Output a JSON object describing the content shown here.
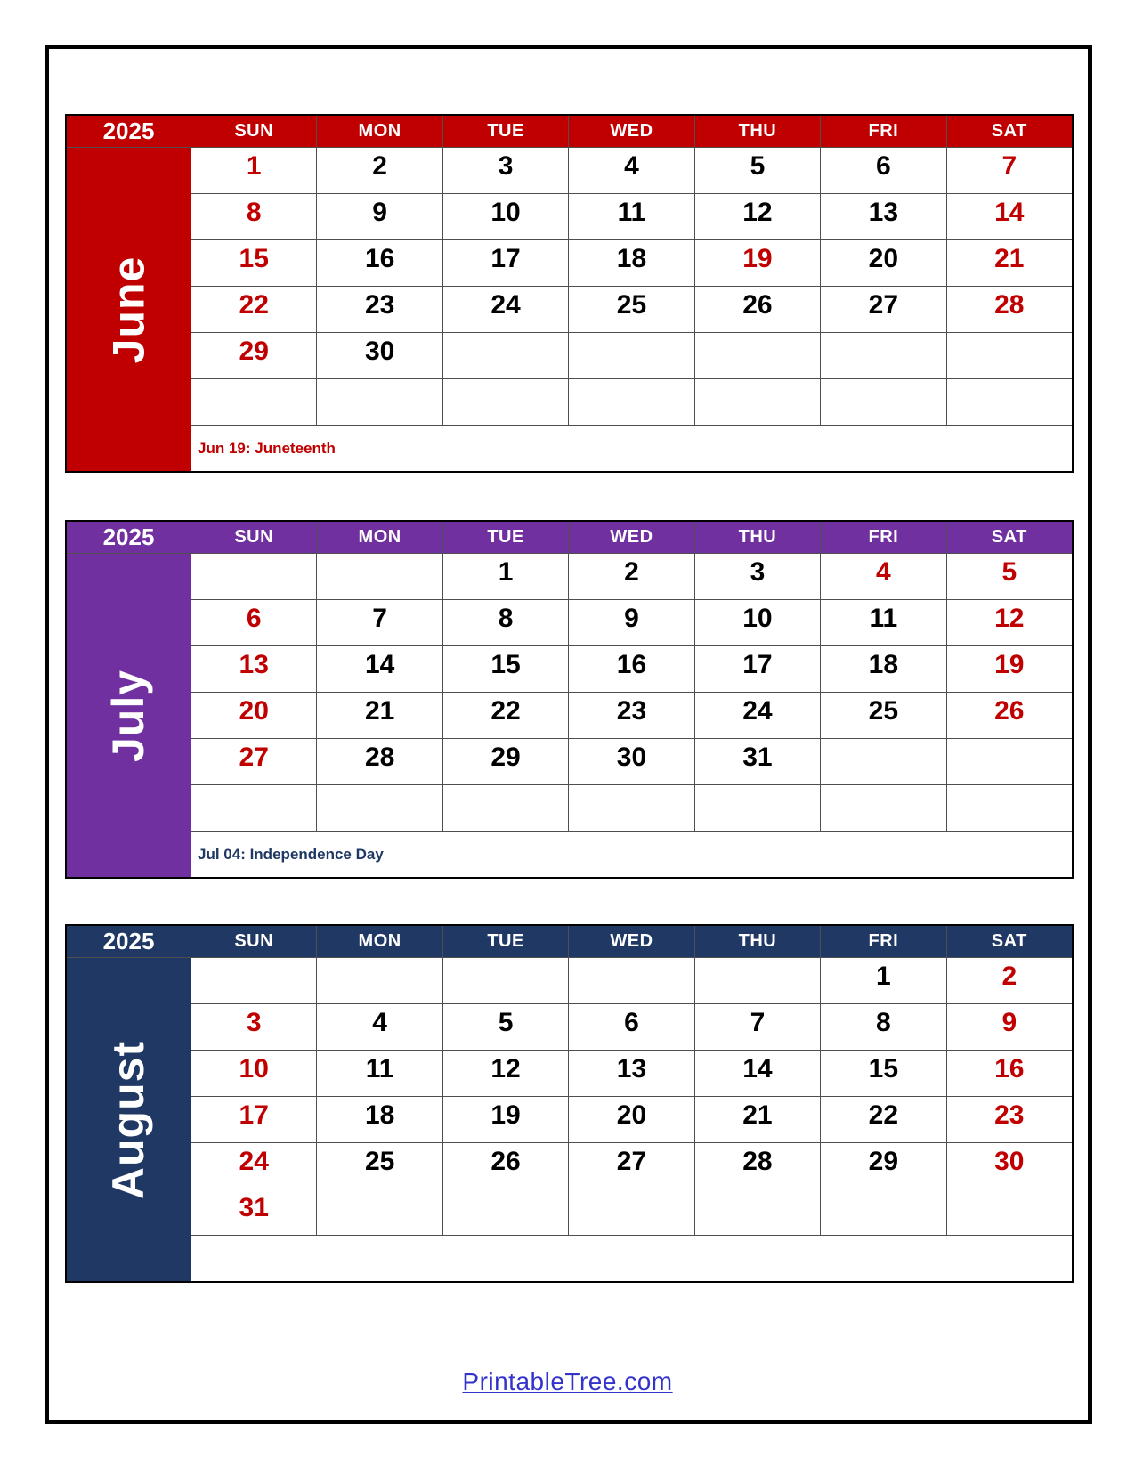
{
  "colors": {
    "june_band": "#C00000",
    "july_band": "#7030A0",
    "august_band": "#1F3864",
    "date_highlight": "#C00000",
    "date_normal": "#000000",
    "link_blue": "#3333CC"
  },
  "footer": {
    "link_text": "PrintableTree.com"
  },
  "months": [
    {
      "name": "June",
      "year": "2025",
      "color": "#C00000",
      "day_headers": [
        "SUN",
        "MON",
        "TUE",
        "WED",
        "THU",
        "FRI",
        "SAT"
      ],
      "note": "Jun 19: Juneteenth",
      "note_color": "#C00000",
      "weeks": [
        [
          {
            "d": "1",
            "red": true
          },
          {
            "d": "2"
          },
          {
            "d": "3"
          },
          {
            "d": "4"
          },
          {
            "d": "5"
          },
          {
            "d": "6"
          },
          {
            "d": "7",
            "red": true
          }
        ],
        [
          {
            "d": "8",
            "red": true
          },
          {
            "d": "9"
          },
          {
            "d": "10"
          },
          {
            "d": "11"
          },
          {
            "d": "12"
          },
          {
            "d": "13"
          },
          {
            "d": "14",
            "red": true
          }
        ],
        [
          {
            "d": "15",
            "red": true
          },
          {
            "d": "16"
          },
          {
            "d": "17"
          },
          {
            "d": "18"
          },
          {
            "d": "19",
            "red": true
          },
          {
            "d": "20"
          },
          {
            "d": "21",
            "red": true
          }
        ],
        [
          {
            "d": "22",
            "red": true
          },
          {
            "d": "23"
          },
          {
            "d": "24"
          },
          {
            "d": "25"
          },
          {
            "d": "26"
          },
          {
            "d": "27"
          },
          {
            "d": "28",
            "red": true
          }
        ],
        [
          {
            "d": "29",
            "red": true
          },
          {
            "d": "30"
          },
          {
            "d": ""
          },
          {
            "d": ""
          },
          {
            "d": ""
          },
          {
            "d": ""
          },
          {
            "d": ""
          }
        ],
        [
          {
            "d": ""
          },
          {
            "d": ""
          },
          {
            "d": ""
          },
          {
            "d": ""
          },
          {
            "d": ""
          },
          {
            "d": ""
          },
          {
            "d": ""
          }
        ]
      ]
    },
    {
      "name": "July",
      "year": "2025",
      "color": "#7030A0",
      "day_headers": [
        "SUN",
        "MON",
        "TUE",
        "WED",
        "THU",
        "FRI",
        "SAT"
      ],
      "note": "Jul 04: Independence Day",
      "note_color": "#1F3864",
      "weeks": [
        [
          {
            "d": ""
          },
          {
            "d": ""
          },
          {
            "d": "1"
          },
          {
            "d": "2"
          },
          {
            "d": "3"
          },
          {
            "d": "4",
            "red": true
          },
          {
            "d": "5",
            "red": true
          }
        ],
        [
          {
            "d": "6",
            "red": true
          },
          {
            "d": "7"
          },
          {
            "d": "8"
          },
          {
            "d": "9"
          },
          {
            "d": "10"
          },
          {
            "d": "11"
          },
          {
            "d": "12",
            "red": true
          }
        ],
        [
          {
            "d": "13",
            "red": true
          },
          {
            "d": "14"
          },
          {
            "d": "15"
          },
          {
            "d": "16"
          },
          {
            "d": "17"
          },
          {
            "d": "18"
          },
          {
            "d": "19",
            "red": true
          }
        ],
        [
          {
            "d": "20",
            "red": true
          },
          {
            "d": "21"
          },
          {
            "d": "22"
          },
          {
            "d": "23"
          },
          {
            "d": "24"
          },
          {
            "d": "25"
          },
          {
            "d": "26",
            "red": true
          }
        ],
        [
          {
            "d": "27",
            "red": true
          },
          {
            "d": "28"
          },
          {
            "d": "29"
          },
          {
            "d": "30"
          },
          {
            "d": "31"
          },
          {
            "d": ""
          },
          {
            "d": ""
          }
        ],
        [
          {
            "d": ""
          },
          {
            "d": ""
          },
          {
            "d": ""
          },
          {
            "d": ""
          },
          {
            "d": ""
          },
          {
            "d": ""
          },
          {
            "d": ""
          }
        ]
      ]
    },
    {
      "name": "August",
      "year": "2025",
      "color": "#1F3864",
      "day_headers": [
        "SUN",
        "MON",
        "TUE",
        "WED",
        "THU",
        "FRI",
        "SAT"
      ],
      "note": "",
      "note_color": "#1F3864",
      "weeks": [
        [
          {
            "d": ""
          },
          {
            "d": ""
          },
          {
            "d": ""
          },
          {
            "d": ""
          },
          {
            "d": ""
          },
          {
            "d": "1"
          },
          {
            "d": "2",
            "red": true
          }
        ],
        [
          {
            "d": "3",
            "red": true
          },
          {
            "d": "4"
          },
          {
            "d": "5"
          },
          {
            "d": "6"
          },
          {
            "d": "7"
          },
          {
            "d": "8"
          },
          {
            "d": "9",
            "red": true
          }
        ],
        [
          {
            "d": "10",
            "red": true
          },
          {
            "d": "11"
          },
          {
            "d": "12"
          },
          {
            "d": "13"
          },
          {
            "d": "14"
          },
          {
            "d": "15"
          },
          {
            "d": "16",
            "red": true
          }
        ],
        [
          {
            "d": "17",
            "red": true
          },
          {
            "d": "18"
          },
          {
            "d": "19"
          },
          {
            "d": "20"
          },
          {
            "d": "21"
          },
          {
            "d": "22"
          },
          {
            "d": "23",
            "red": true
          }
        ],
        [
          {
            "d": "24",
            "red": true
          },
          {
            "d": "25"
          },
          {
            "d": "26"
          },
          {
            "d": "27"
          },
          {
            "d": "28"
          },
          {
            "d": "29"
          },
          {
            "d": "30",
            "red": true
          }
        ],
        [
          {
            "d": "31",
            "red": true
          },
          {
            "d": ""
          },
          {
            "d": ""
          },
          {
            "d": ""
          },
          {
            "d": ""
          },
          {
            "d": ""
          },
          {
            "d": ""
          }
        ]
      ]
    }
  ]
}
